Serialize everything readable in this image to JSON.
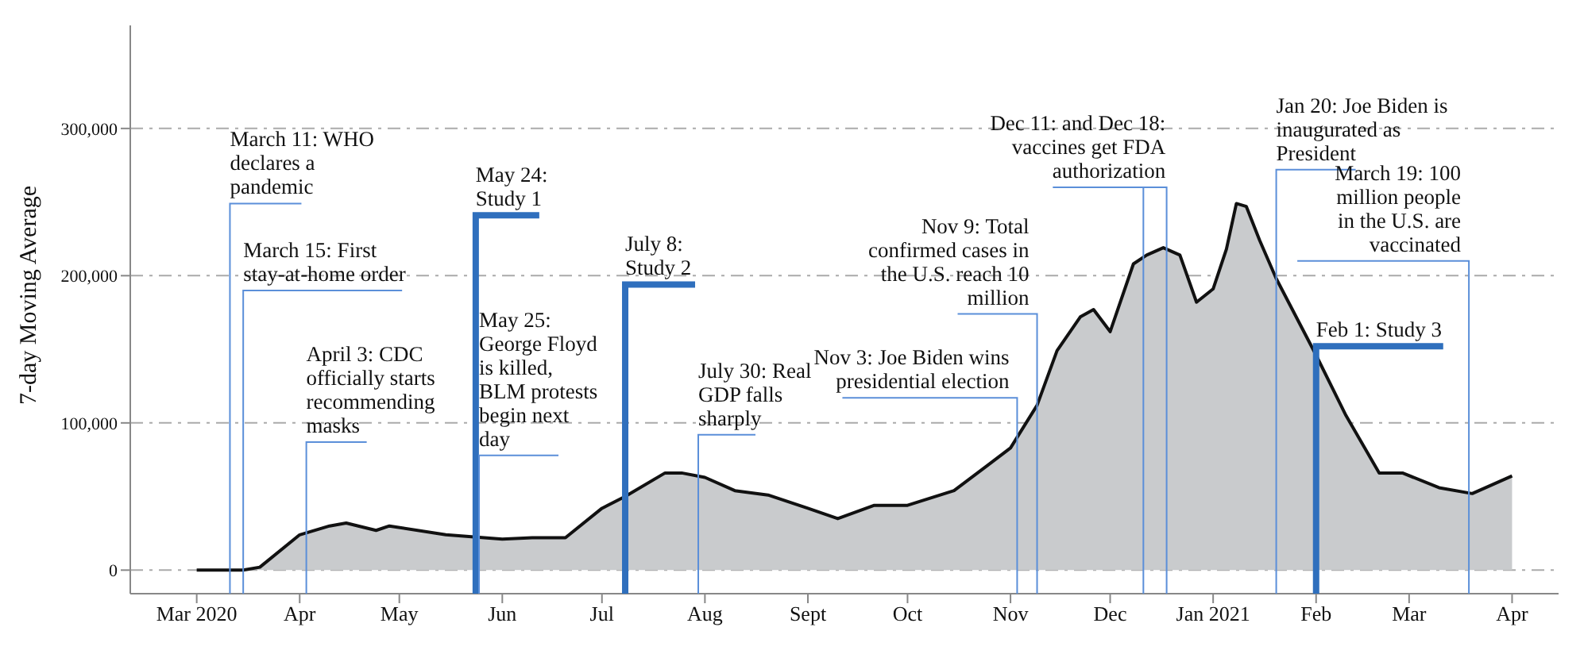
{
  "chart_data": {
    "type": "area",
    "ylabel": "7-day Moving Average",
    "x": [
      "2020-03-01",
      "2020-03-15",
      "2020-03-20",
      "2020-04-01",
      "2020-04-10",
      "2020-04-15",
      "2020-04-24",
      "2020-04-28",
      "2020-05-15",
      "2020-06-01",
      "2020-06-10",
      "2020-06-20",
      "2020-07-01",
      "2020-07-08",
      "2020-07-20",
      "2020-07-25",
      "2020-08-01",
      "2020-08-10",
      "2020-08-20",
      "2020-09-01",
      "2020-09-10",
      "2020-09-21",
      "2020-10-01",
      "2020-10-15",
      "2020-10-25",
      "2020-11-01",
      "2020-11-09",
      "2020-11-15",
      "2020-11-22",
      "2020-11-26",
      "2020-12-01",
      "2020-12-08",
      "2020-12-12",
      "2020-12-17",
      "2020-12-22",
      "2020-12-27",
      "2021-01-01",
      "2021-01-05",
      "2021-01-08",
      "2021-01-11",
      "2021-01-15",
      "2021-01-20",
      "2021-02-01",
      "2021-02-10",
      "2021-02-20",
      "2021-02-27",
      "2021-03-10",
      "2021-03-20",
      "2021-03-25",
      "2021-04-01"
    ],
    "series": [
      {
        "color": "#c9cbcd",
        "values": [
          0,
          0,
          2000,
          24000,
          30000,
          32000,
          27000,
          30000,
          24000,
          21000,
          22000,
          22000,
          42000,
          50000,
          66000,
          66000,
          63000,
          54000,
          51000,
          42000,
          35000,
          44000,
          44000,
          54000,
          71000,
          83000,
          112000,
          149000,
          172000,
          177000,
          162000,
          208000,
          214000,
          219000,
          214000,
          182000,
          191000,
          218000,
          249000,
          247000,
          224000,
          198000,
          146000,
          105000,
          66000,
          66000,
          56000,
          52000,
          57000,
          64000
        ]
      }
    ],
    "xlim": [
      "2020-02-10",
      "2021-04-15"
    ],
    "xticks": [
      {
        "value": "2020-03-01",
        "label": "Mar 2020"
      },
      {
        "value": "2020-04-01",
        "label": "Apr"
      },
      {
        "value": "2020-05-01",
        "label": "May"
      },
      {
        "value": "2020-06-01",
        "label": "Jun"
      },
      {
        "value": "2020-07-01",
        "label": "Jul"
      },
      {
        "value": "2020-08-01",
        "label": "Aug"
      },
      {
        "value": "2020-09-01",
        "label": "Sept"
      },
      {
        "value": "2020-10-01",
        "label": "Oct"
      },
      {
        "value": "2020-11-01",
        "label": "Nov"
      },
      {
        "value": "2020-12-01",
        "label": "Dec"
      },
      {
        "value": "2021-01-01",
        "label": "Jan 2021"
      },
      {
        "value": "2021-02-01",
        "label": "Feb"
      },
      {
        "value": "2021-03-01",
        "label": "Mar"
      },
      {
        "value": "2021-04-01",
        "label": "Apr"
      }
    ],
    "ylim": [
      -16000,
      370000
    ],
    "yticks": [
      0,
      {
        "value": 100000,
        "label": "100,000"
      },
      {
        "value": 200000,
        "label": "200,000"
      },
      {
        "value": 300000,
        "label": "300,000"
      }
    ],
    "grid": "y",
    "ref_lines": [
      {
        "axis": "x",
        "value": "2020-03-11",
        "label": "March 11: WHO declares a pandemic",
        "color": "#5b8fd9"
      },
      {
        "axis": "x",
        "value": "2020-03-15",
        "label": "March 15: First stay-at-home order",
        "color": "#5b8fd9"
      },
      {
        "axis": "x",
        "value": "2020-04-03",
        "label": "April 3: CDC officially starts recommending masks",
        "color": "#5b8fd9"
      },
      {
        "axis": "x",
        "value": "2020-05-24",
        "label": "May 24: Study 1",
        "color": "#2f6fbd"
      },
      {
        "axis": "x",
        "value": "2020-05-25",
        "label": "May 25: George Floyd is killed, BLM protests begin next day",
        "color": "#5b8fd9"
      },
      {
        "axis": "x",
        "value": "2020-07-08",
        "label": "July 8: Study 2",
        "color": "#2f6fbd"
      },
      {
        "axis": "x",
        "value": "2020-07-30",
        "label": "July 30: Real GDP falls sharply",
        "color": "#5b8fd9"
      },
      {
        "axis": "x",
        "value": "2020-11-03",
        "label": "Nov 3: Joe Biden wins presidential election",
        "color": "#5b8fd9"
      },
      {
        "axis": "x",
        "value": "2020-11-09",
        "label": "Nov 9: Total confirmed cases in the U.S. reach 10 million",
        "color": "#5b8fd9"
      },
      {
        "axis": "x",
        "value": "2020-12-11",
        "label": "Dec 11: and Dec 18: vaccines get FDA authorization",
        "color": "#5b8fd9"
      },
      {
        "axis": "x",
        "value": "2020-12-18",
        "color": "#5b8fd9"
      },
      {
        "axis": "x",
        "value": "2021-01-20",
        "label": "Jan 20: Joe Biden is inaugurated as President",
        "color": "#5b8fd9"
      },
      {
        "axis": "x",
        "value": "2021-02-01",
        "label": "Feb 1: Study 3",
        "color": "#2f6fbd"
      },
      {
        "axis": "x",
        "value": "2021-03-19",
        "label": "March 19: 100 million people in the U.S. are vaccinated",
        "color": "#5b8fd9"
      }
    ]
  }
}
